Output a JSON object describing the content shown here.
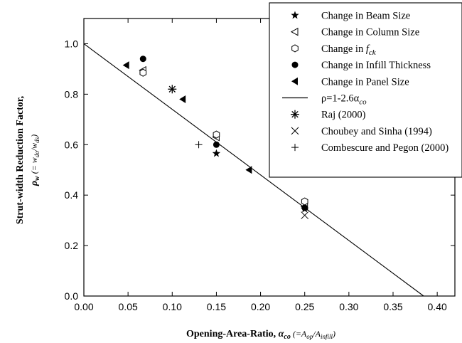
{
  "chart_data": {
    "type": "scatter",
    "xlim": [
      0,
      0.42
    ],
    "ylim": [
      0,
      1.1
    ],
    "x_ticks": [
      "0.00",
      "0.05",
      "0.10",
      "0.15",
      "0.20",
      "0.25",
      "0.30",
      "0.35",
      "0.40"
    ],
    "y_ticks": [
      "0.0",
      "0.2",
      "0.4",
      "0.6",
      "0.8",
      "1.0"
    ],
    "xlabel": {
      "main": "Opening-Area-Ratio, ",
      "sym": "α",
      "sub": "co",
      "paren": " (=A",
      "sub2": "op",
      "slash": "/A",
      "sub3": "infill",
      "close": ")"
    },
    "ylabel": {
      "line1": "Strut-width Reduction Factor,",
      "sym": "ρ",
      "sub": "w",
      "paren": " (= w",
      "sub2": "do",
      "slash": "/w",
      "sub3": "ds",
      "close": ")"
    },
    "legend_position": "top-right",
    "grid": false,
    "series": [
      {
        "name": "Change in Beam Size",
        "marker": "star",
        "points": [
          [
            0.15,
            0.565
          ],
          [
            0.25,
            0.345
          ]
        ]
      },
      {
        "name": "Change in Column Size",
        "marker": "triangle-left-open",
        "points": [
          [
            0.067,
            0.895
          ],
          [
            0.15,
            0.63
          ],
          [
            0.25,
            0.355
          ]
        ]
      },
      {
        "name": "Change in ",
        "name_italic": "f",
        "name_sub": "ck",
        "marker": "hexagon-open",
        "points": [
          [
            0.067,
            0.885
          ],
          [
            0.15,
            0.64
          ],
          [
            0.25,
            0.375
          ]
        ]
      },
      {
        "name": "Change in Infill Thickness",
        "marker": "circle-filled",
        "points": [
          [
            0.067,
            0.94
          ],
          [
            0.15,
            0.6
          ],
          [
            0.25,
            0.35
          ]
        ]
      },
      {
        "name": "Change in Panel Size",
        "marker": "triangle-left-filled",
        "points": [
          [
            0.048,
            0.915
          ],
          [
            0.112,
            0.78
          ],
          [
            0.187,
            0.5
          ]
        ]
      },
      {
        "name": "ρ=1-2.6α",
        "name_sub": "co",
        "marker": "line",
        "line": {
          "intercept": 1.0,
          "slope": -2.6
        }
      },
      {
        "name": "Raj (2000)",
        "marker": "asterisk",
        "points": [
          [
            0.1,
            0.82
          ]
        ]
      },
      {
        "name": "Choubey and Sinha (1994)",
        "marker": "x",
        "points": [
          [
            0.25,
            0.32
          ]
        ]
      },
      {
        "name": "Combescure and Pegon (2000)",
        "marker": "plus",
        "points": [
          [
            0.13,
            0.6
          ]
        ]
      }
    ]
  }
}
